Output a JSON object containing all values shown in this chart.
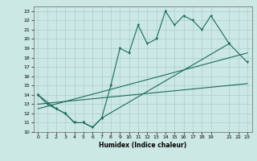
{
  "bg_color": "#cce8e4",
  "grid_color": "#aacccc",
  "line_color": "#1a6b5a",
  "xlabel": "Humidex (Indice chaleur)",
  "xlim": [
    -0.5,
    23.5
  ],
  "ylim": [
    10,
    23.5
  ],
  "yticks": [
    10,
    11,
    12,
    13,
    14,
    15,
    16,
    17,
    18,
    19,
    20,
    21,
    22,
    23
  ],
  "xticks": [
    0,
    1,
    2,
    3,
    4,
    5,
    6,
    7,
    8,
    9,
    10,
    11,
    12,
    13,
    14,
    15,
    16,
    17,
    18,
    19,
    21,
    22,
    23
  ],
  "line1_x": [
    0,
    1,
    2,
    3,
    4,
    5,
    6,
    7,
    8,
    9,
    10,
    11,
    12,
    13,
    14,
    15,
    16,
    17,
    18,
    19,
    21
  ],
  "line1_y": [
    14.0,
    13.0,
    12.5,
    12.0,
    11.0,
    11.0,
    10.5,
    11.5,
    15.0,
    19.0,
    18.5,
    21.5,
    19.5,
    20.0,
    23.0,
    21.5,
    22.5,
    22.0,
    21.0,
    22.5,
    19.5
  ],
  "line2_x": [
    0,
    2,
    3,
    4,
    5,
    6,
    7,
    21,
    23
  ],
  "line2_y": [
    14.0,
    12.5,
    12.0,
    11.0,
    11.0,
    10.5,
    11.5,
    19.5,
    17.5
  ],
  "line3_x": [
    0,
    23
  ],
  "line3_y": [
    13.0,
    15.2
  ],
  "line4_x": [
    0,
    23
  ],
  "line4_y": [
    12.5,
    18.5
  ]
}
